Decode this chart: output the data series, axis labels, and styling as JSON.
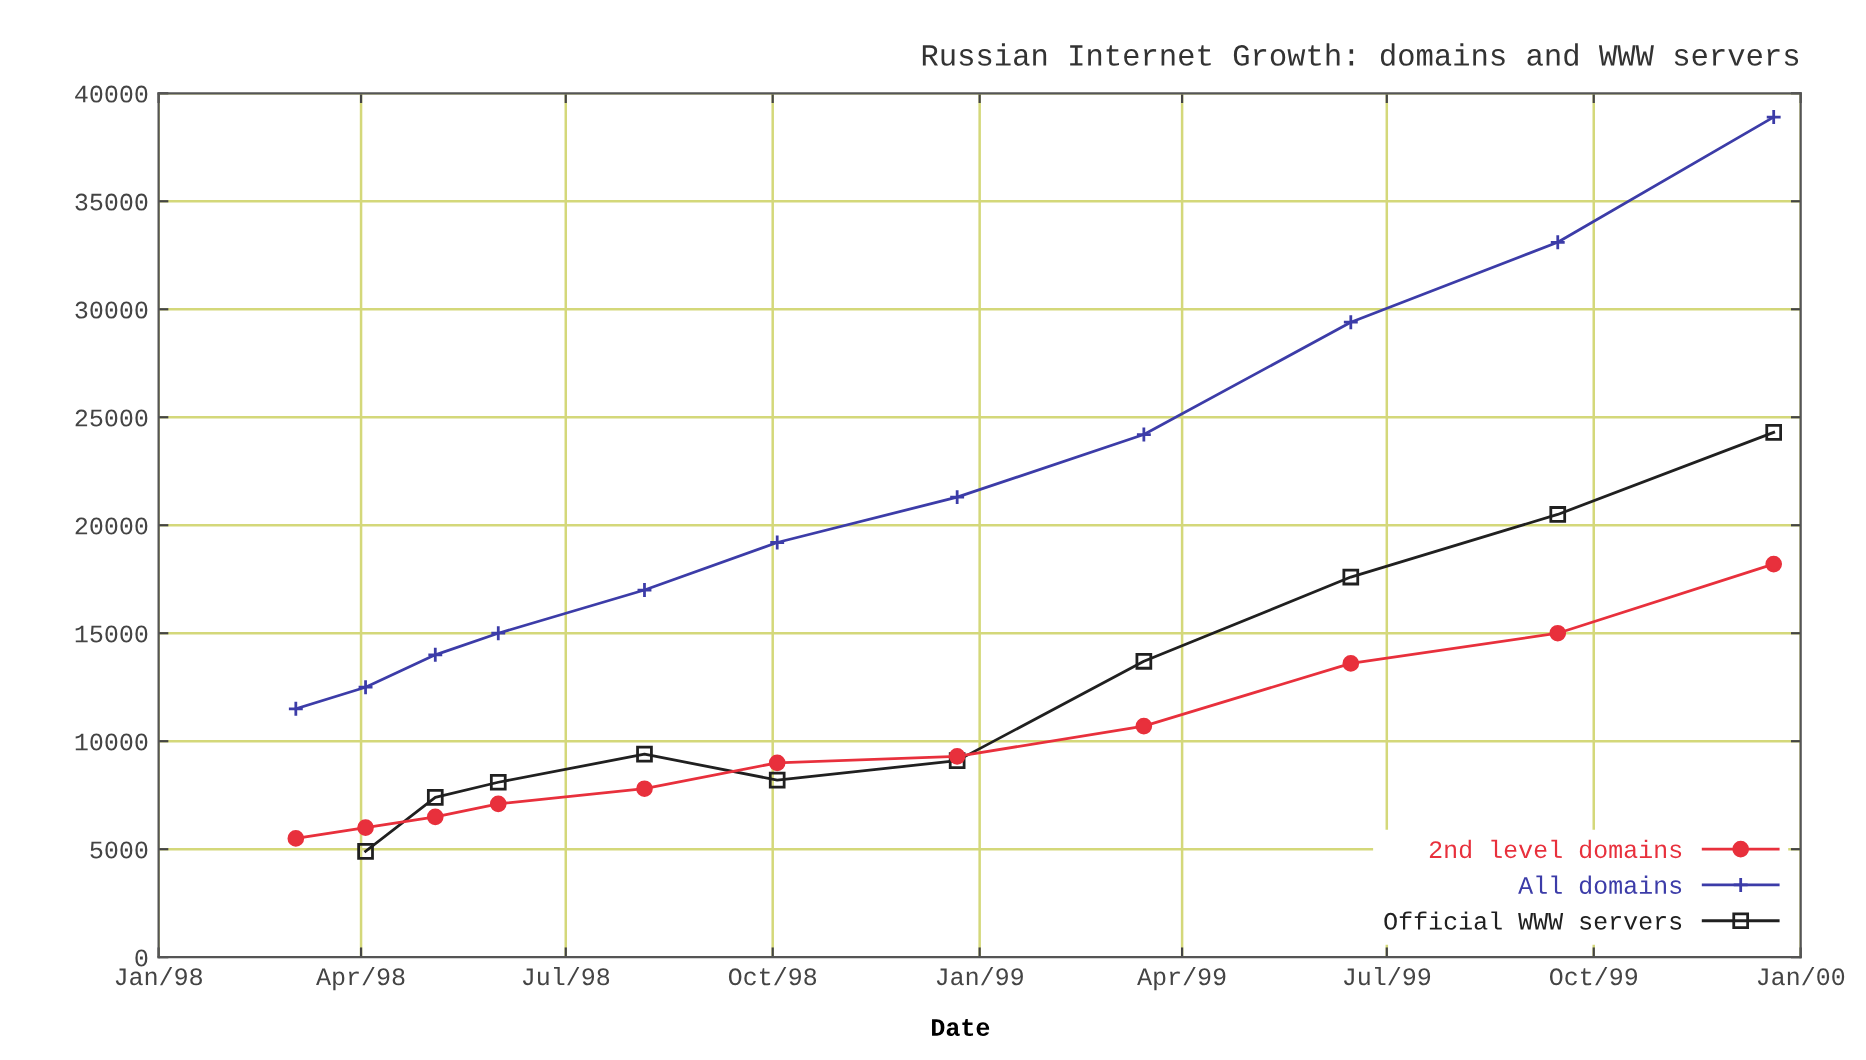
{
  "chart_data": {
    "type": "line",
    "title": "Russian Internet Growth: domains and WWW servers",
    "xlabel": "Date",
    "x": [
      "1998-03-03",
      "1998-04-03",
      "1998-05-04",
      "1998-06-01",
      "1998-08-05",
      "1998-10-03",
      "1998-12-22",
      "1999-03-15",
      "1999-06-15",
      "1999-09-15",
      "1999-12-20"
    ],
    "series": [
      {
        "name": "2nd level domains",
        "color": "#e8303c",
        "marker": "circle",
        "values": [
          5500,
          6000,
          6500,
          7100,
          7800,
          9000,
          9300,
          10700,
          13600,
          15000,
          18200
        ]
      },
      {
        "name": "All domains",
        "color": "#3c3ca8",
        "marker": "cross",
        "values": [
          11500,
          12500,
          14000,
          15000,
          17000,
          19200,
          21300,
          24200,
          29400,
          33100,
          38900
        ]
      },
      {
        "name": "Official WWW servers",
        "color": "#202020",
        "marker": "square",
        "values": [
          null,
          4900,
          7400,
          8100,
          9400,
          8200,
          9100,
          13700,
          17600,
          20500,
          24300
        ]
      }
    ],
    "xlim": [
      "1998-01",
      "2000-01"
    ],
    "xticks": [
      {
        "value": "1998-01",
        "label": "Jan/98"
      },
      {
        "value": "1998-04",
        "label": "Apr/98"
      },
      {
        "value": "1998-07",
        "label": "Jul/98"
      },
      {
        "value": "1998-10",
        "label": "Oct/98"
      },
      {
        "value": "1999-01",
        "label": "Jan/99"
      },
      {
        "value": "1999-04",
        "label": "Apr/99"
      },
      {
        "value": "1999-07",
        "label": "Jul/99"
      },
      {
        "value": "1999-10",
        "label": "Oct/99"
      },
      {
        "value": "2000-01",
        "label": "Jan/00"
      }
    ],
    "ylim": [
      0,
      40000
    ],
    "yticks": [
      0,
      5000,
      10000,
      15000,
      20000,
      25000,
      30000,
      35000,
      40000
    ],
    "grid": true,
    "legend": "bottom right",
    "line_style": "solid"
  }
}
